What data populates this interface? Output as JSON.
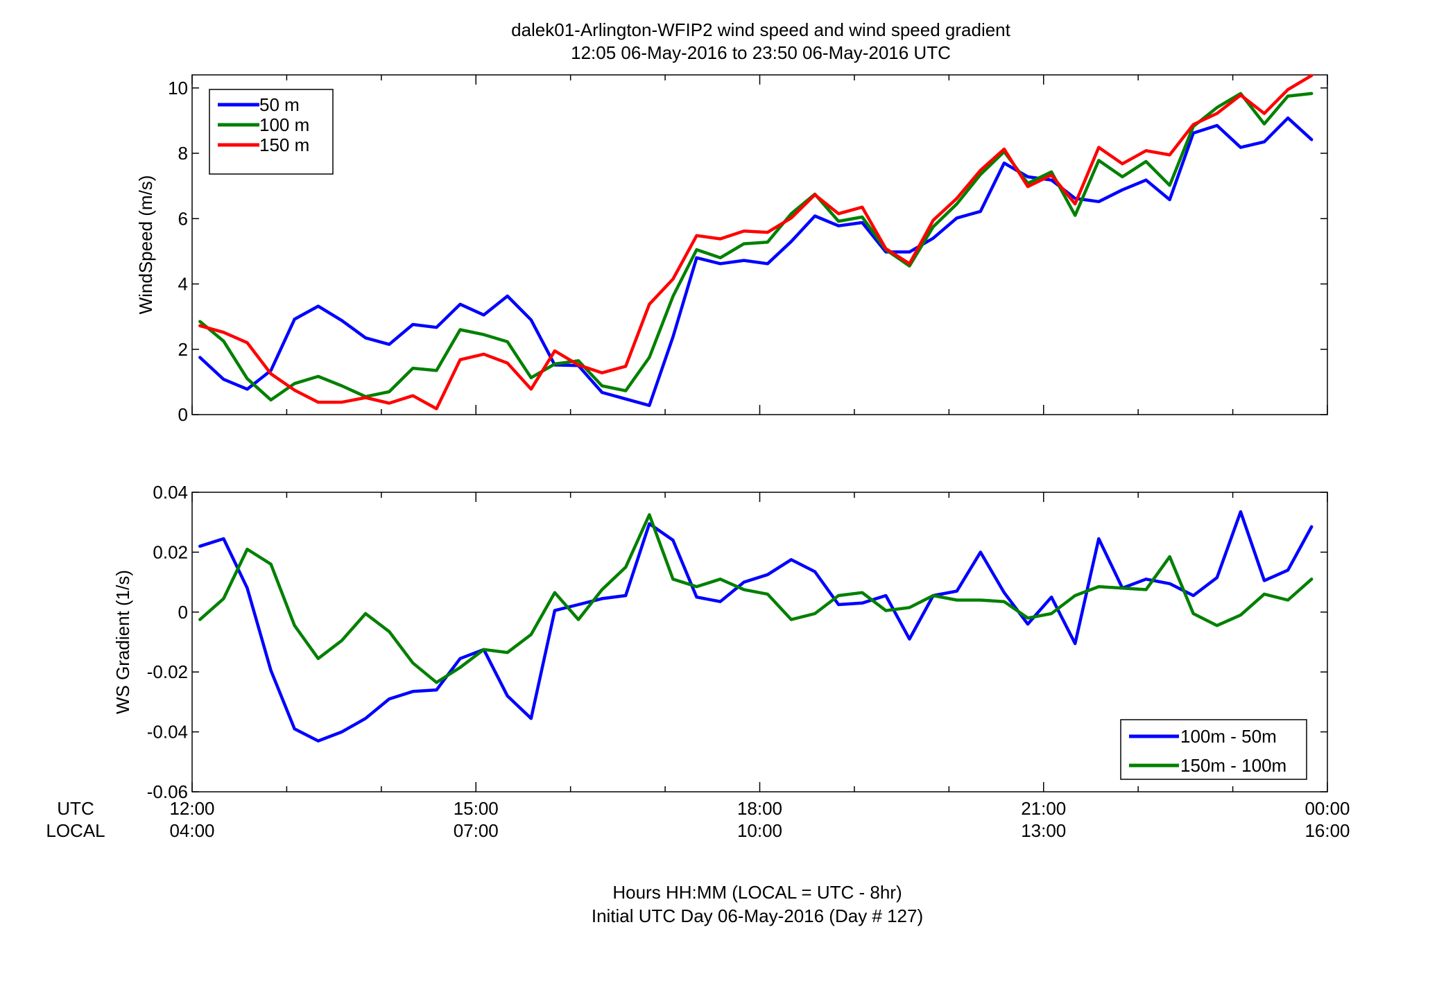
{
  "figure": {
    "title_line1": "dalek01-Arlington-WFIP2  wind speed and wind speed gradient",
    "title_line2": "12:05 06-May-2016 to 23:50 06-May-2016  UTC",
    "xlabel_line1": "Hours HH:MM  (LOCAL = UTC - 8hr)",
    "xlabel_line2": "Initial UTC Day 06-May-2016 (Day # 127)",
    "row_label_utc": "UTC",
    "row_label_local": "LOCAL",
    "ticks_utc": [
      "12:00",
      "15:00",
      "18:00",
      "21:00",
      "00:00"
    ],
    "ticks_local": [
      "04:00",
      "07:00",
      "10:00",
      "13:00",
      "16:00"
    ]
  },
  "chart_data": [
    {
      "type": "line",
      "ylabel": "WindSpeed (m/s)",
      "xlim": [
        12.0,
        24.0
      ],
      "ylim": [
        0,
        10.4
      ],
      "yticks": [
        0,
        2,
        4,
        6,
        8,
        10
      ],
      "ytick_labels": [
        "0",
        "2",
        "4",
        "6",
        "8",
        "10"
      ],
      "legend_position": "top-left",
      "x": [
        12.083,
        12.333,
        12.583,
        12.833,
        13.083,
        13.333,
        13.583,
        13.833,
        14.083,
        14.333,
        14.583,
        14.833,
        15.083,
        15.333,
        15.583,
        15.833,
        16.083,
        16.333,
        16.583,
        16.833,
        17.083,
        17.333,
        17.583,
        17.833,
        18.083,
        18.333,
        18.583,
        18.833,
        19.083,
        19.333,
        19.583,
        19.833,
        20.083,
        20.333,
        20.583,
        20.833,
        21.083,
        21.333,
        21.583,
        21.833,
        22.083,
        22.333,
        22.583,
        22.833,
        23.083,
        23.333,
        23.583,
        23.833
      ],
      "series": [
        {
          "name": "50 m",
          "color": "#0000ff",
          "values": [
            1.75,
            1.08,
            0.78,
            1.35,
            2.92,
            3.32,
            2.88,
            2.35,
            2.15,
            2.76,
            2.67,
            3.38,
            3.05,
            3.63,
            2.9,
            1.52,
            1.5,
            0.68,
            0.48,
            0.28,
            2.38,
            4.8,
            4.62,
            4.72,
            4.62,
            5.3,
            6.08,
            5.78,
            5.88,
            4.98,
            4.98,
            5.4,
            6.02,
            6.22,
            7.7,
            7.28,
            7.18,
            6.62,
            6.52,
            6.88,
            7.18,
            6.58,
            8.62,
            8.85,
            8.18,
            8.35,
            9.08,
            8.42
          ]
        },
        {
          "name": "100 m",
          "color": "#008000",
          "values": [
            2.85,
            2.25,
            1.1,
            0.45,
            0.95,
            1.17,
            0.88,
            0.55,
            0.7,
            1.42,
            1.35,
            2.6,
            2.45,
            2.23,
            1.13,
            1.55,
            1.65,
            0.88,
            0.73,
            1.75,
            3.62,
            5.05,
            4.8,
            5.23,
            5.28,
            6.15,
            6.75,
            5.92,
            6.05,
            5.05,
            4.55,
            5.75,
            6.45,
            7.35,
            8.05,
            7.08,
            7.43,
            6.1,
            7.78,
            7.28,
            7.75,
            7.02,
            8.82,
            9.4,
            9.83,
            8.9,
            9.75,
            9.83
          ]
        },
        {
          "name": "150 m",
          "color": "#ff0000",
          "values": [
            2.72,
            2.52,
            2.2,
            1.25,
            0.75,
            0.38,
            0.38,
            0.52,
            0.35,
            0.58,
            0.18,
            1.68,
            1.85,
            1.58,
            0.78,
            1.95,
            1.52,
            1.28,
            1.48,
            3.38,
            4.15,
            5.48,
            5.38,
            5.62,
            5.58,
            6.02,
            6.73,
            6.15,
            6.35,
            5.08,
            4.62,
            5.95,
            6.62,
            7.48,
            8.13,
            6.98,
            7.33,
            6.45,
            8.18,
            7.68,
            8.08,
            7.95,
            8.88,
            9.22,
            9.78,
            9.22,
            9.95,
            10.38
          ]
        }
      ]
    },
    {
      "type": "line",
      "ylabel": "WS Gradient (1/s)",
      "xlim": [
        12.0,
        24.0
      ],
      "ylim": [
        -0.06,
        0.04
      ],
      "yticks": [
        -0.06,
        -0.04,
        -0.02,
        0,
        0.02,
        0.04
      ],
      "ytick_labels": [
        "-0.06",
        "-0.04",
        "-0.02",
        "0",
        "0.02",
        "0.04"
      ],
      "legend_position": "bottom-right",
      "x": [
        12.083,
        12.333,
        12.583,
        12.833,
        13.083,
        13.333,
        13.583,
        13.833,
        14.083,
        14.333,
        14.583,
        14.833,
        15.083,
        15.333,
        15.583,
        15.833,
        16.083,
        16.333,
        16.583,
        16.833,
        17.083,
        17.333,
        17.583,
        17.833,
        18.083,
        18.333,
        18.583,
        18.833,
        19.083,
        19.333,
        19.583,
        19.833,
        20.083,
        20.333,
        20.583,
        20.833,
        21.083,
        21.333,
        21.583,
        21.833,
        22.083,
        22.333,
        22.583,
        22.833,
        23.083,
        23.333,
        23.583,
        23.833
      ],
      "series": [
        {
          "name": "100m - 50m",
          "color": "#0000ff",
          "values": [
            0.022,
            0.0245,
            0.008,
            -0.0195,
            -0.039,
            -0.043,
            -0.04,
            -0.0355,
            -0.029,
            -0.0265,
            -0.026,
            -0.0155,
            -0.0125,
            -0.028,
            -0.0355,
            0.0005,
            0.0025,
            0.0045,
            0.0055,
            0.0295,
            0.024,
            0.005,
            0.0035,
            0.01,
            0.0125,
            0.0175,
            0.0135,
            0.0025,
            0.003,
            0.0055,
            -0.009,
            0.0055,
            0.007,
            0.02,
            0.0065,
            -0.004,
            0.005,
            -0.0105,
            0.0245,
            0.008,
            0.011,
            0.0095,
            0.0055,
            0.0115,
            0.0335,
            0.0105,
            0.014,
            0.0285
          ]
        },
        {
          "name": "150m - 100m",
          "color": "#008000",
          "values": [
            -0.0025,
            0.0045,
            0.021,
            0.016,
            -0.0045,
            -0.0155,
            -0.0095,
            -0.0005,
            -0.0065,
            -0.017,
            -0.0235,
            -0.0185,
            -0.0125,
            -0.0135,
            -0.0075,
            0.0065,
            -0.0025,
            0.0075,
            0.015,
            0.0325,
            0.011,
            0.0085,
            0.011,
            0.0075,
            0.006,
            -0.0025,
            -0.0005,
            0.0055,
            0.0065,
            0.0005,
            0.0015,
            0.0055,
            0.004,
            0.004,
            0.0035,
            -0.002,
            -0.0005,
            0.0055,
            0.0085,
            0.008,
            0.0075,
            0.0185,
            -0.0005,
            -0.0045,
            -0.001,
            0.006,
            0.004,
            0.011
          ]
        }
      ]
    }
  ]
}
